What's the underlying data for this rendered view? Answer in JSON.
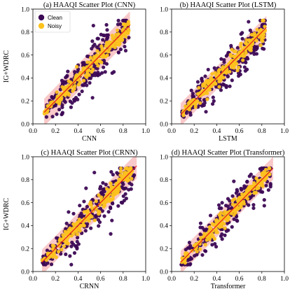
{
  "colors": {
    "clean": "#3d0a55",
    "noisy": "#fdc21e",
    "fit_line": "#e31a1c",
    "band": "#f7b6b6"
  },
  "chart_data": [
    {
      "type": "scatter",
      "title": "(a) HAAQI Scatter Plot (CNN)",
      "xlabel": "CNN",
      "ylabel": "IG+WDRC",
      "xlim": [
        0.0,
        1.0
      ],
      "ylim": [
        0.0,
        1.0
      ],
      "xticks": [
        "0.0",
        "0.2",
        "0.4",
        "0.6",
        "0.8",
        "1.0"
      ],
      "yticks": [
        "0.0",
        "0.2",
        "0.4",
        "0.6",
        "0.8",
        "1.0"
      ],
      "grid": false,
      "legend": {
        "placement": "top-left",
        "entries": [
          "Clean",
          "Noisy"
        ]
      },
      "fit_line": [
        [
          0.1,
          0.1
        ],
        [
          0.86,
          0.86
        ]
      ],
      "band_halfwidth": 0.12,
      "series": [
        {
          "name": "Clean",
          "x_range": [
            0.1,
            0.85
          ],
          "spread": 0.1,
          "count": 240
        },
        {
          "name": "Noisy",
          "x_range": [
            0.1,
            0.85
          ],
          "spread": 0.04,
          "count": 220
        }
      ]
    },
    {
      "type": "scatter",
      "title": "(b) HAAQI Scatter Plot (LSTM)",
      "xlabel": "LSTM",
      "ylabel": "",
      "xlim": [
        0.0,
        1.0
      ],
      "ylim": [
        0.0,
        1.0
      ],
      "xticks": [
        "0.0",
        "0.2",
        "0.4",
        "0.6",
        "0.8",
        "1.0"
      ],
      "yticks": [
        "0.0",
        "0.2",
        "0.4",
        "0.6",
        "0.8",
        "1.0"
      ],
      "grid": false,
      "legend": null,
      "fit_line": [
        [
          0.08,
          0.08
        ],
        [
          0.84,
          0.84
        ]
      ],
      "band_halfwidth": 0.1,
      "series": [
        {
          "name": "Clean",
          "x_range": [
            0.08,
            0.83
          ],
          "spread": 0.09,
          "count": 240
        },
        {
          "name": "Noisy",
          "x_range": [
            0.08,
            0.83
          ],
          "spread": 0.04,
          "count": 220
        }
      ]
    },
    {
      "type": "scatter",
      "title": "(c) HAAQI Scatter Plot (CRNN)",
      "xlabel": "CRNN",
      "ylabel": "IG+WDRC",
      "xlim": [
        0.0,
        1.0
      ],
      "ylim": [
        0.0,
        1.0
      ],
      "xticks": [
        "0.0",
        "0.2",
        "0.4",
        "0.6",
        "0.8",
        "1.0"
      ],
      "yticks": [
        "0.0",
        "0.2",
        "0.4",
        "0.6",
        "0.8",
        "1.0"
      ],
      "grid": false,
      "legend": null,
      "fit_line": [
        [
          0.08,
          0.08
        ],
        [
          0.92,
          0.92
        ]
      ],
      "band_halfwidth": 0.11,
      "series": [
        {
          "name": "Clean",
          "x_range": [
            0.08,
            0.9
          ],
          "spread": 0.1,
          "count": 240
        },
        {
          "name": "Noisy",
          "x_range": [
            0.08,
            0.88
          ],
          "spread": 0.04,
          "count": 220
        }
      ]
    },
    {
      "type": "scatter",
      "title": "(d) HAAQI Scatter Plot (Transformer)",
      "xlabel": "Transformer",
      "ylabel": "",
      "xlim": [
        0.0,
        1.0
      ],
      "ylim": [
        0.0,
        1.0
      ],
      "xticks": [
        "0.0",
        "0.2",
        "0.4",
        "0.6",
        "0.8",
        "1.0"
      ],
      "yticks": [
        "0.0",
        "0.2",
        "0.4",
        "0.6",
        "0.8",
        "1.0"
      ],
      "grid": false,
      "legend": null,
      "fit_line": [
        [
          0.08,
          0.08
        ],
        [
          0.9,
          0.9
        ]
      ],
      "band_halfwidth": 0.1,
      "series": [
        {
          "name": "Clean",
          "x_range": [
            0.08,
            0.88
          ],
          "spread": 0.09,
          "count": 240
        },
        {
          "name": "Noisy",
          "x_range": [
            0.08,
            0.88
          ],
          "spread": 0.04,
          "count": 220
        }
      ]
    }
  ]
}
